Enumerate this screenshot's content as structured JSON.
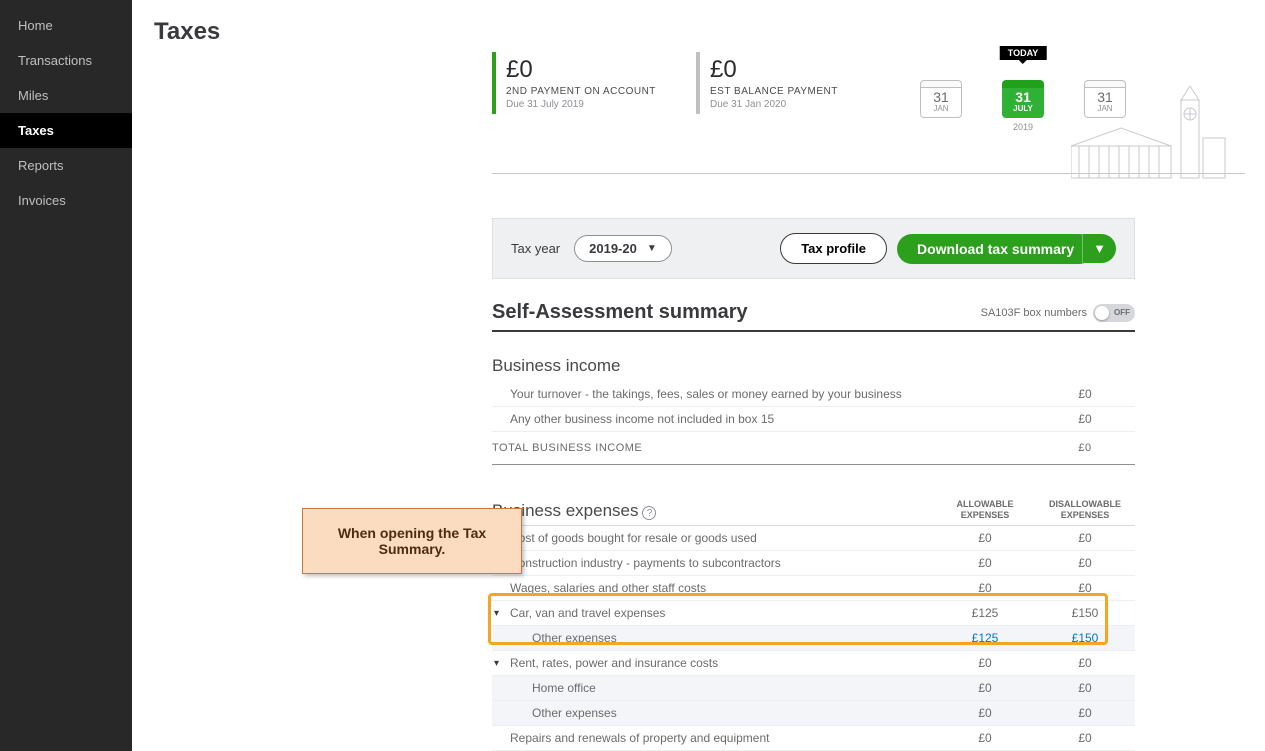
{
  "sidebar": {
    "items": [
      {
        "label": "Home"
      },
      {
        "label": "Transactions"
      },
      {
        "label": "Miles"
      },
      {
        "label": "Taxes"
      },
      {
        "label": "Reports"
      },
      {
        "label": "Invoices"
      }
    ],
    "active_index": 3
  },
  "page": {
    "title": "Taxes"
  },
  "timeline": {
    "today_label": "TODAY",
    "year_label": "2019",
    "payments": [
      {
        "amount": "£0",
        "title": "2ND PAYMENT ON ACCOUNT",
        "due": "Due 31 July 2019",
        "accent": "#2ca01c"
      },
      {
        "amount": "£0",
        "title": "EST BALANCE PAYMENT",
        "due": "Due 31 Jan 2020",
        "accent": "#c0c0c0"
      }
    ],
    "dates": [
      {
        "day": "31",
        "mon": "JAN",
        "style": "plain"
      },
      {
        "day": "31",
        "mon": "JULY",
        "style": "green"
      },
      {
        "day": "31",
        "mon": "JAN",
        "style": "plain"
      }
    ]
  },
  "controls": {
    "tax_year_label": "Tax year",
    "tax_year_value": "2019-20",
    "tax_profile_btn": "Tax profile",
    "download_btn": "Download tax summary"
  },
  "summary": {
    "title": "Self-Assessment summary",
    "box_numbers_label": "SA103F box numbers",
    "toggle_state": "OFF",
    "income": {
      "heading": "Business income",
      "rows": [
        {
          "label": "Your turnover - the takings, fees, sales or money earned by your business",
          "value": "£0"
        },
        {
          "label": "Any other business income not included in box 15",
          "value": "£0"
        }
      ],
      "total_label": "TOTAL BUSINESS INCOME",
      "total_value": "£0"
    },
    "expenses": {
      "heading": "Business expenses",
      "col1": "ALLOWABLE EXPENSES",
      "col2": "DISALLOWABLE EXPENSES",
      "rows": [
        {
          "label": "Cost of goods bought for resale or goods used",
          "allow": "£0",
          "disallow": "£0",
          "type": "plain"
        },
        {
          "label": "Construction industry - payments to subcontractors",
          "allow": "£0",
          "disallow": "£0",
          "type": "plain"
        },
        {
          "label": "Wages, salaries and other staff costs",
          "allow": "£0",
          "disallow": "£0",
          "type": "plain"
        },
        {
          "label": "Car, van and travel expenses",
          "allow": "£125",
          "disallow": "£150",
          "type": "parent"
        },
        {
          "label": "Other expenses",
          "allow": "£125",
          "disallow": "£150",
          "type": "sub_link"
        },
        {
          "label": "Rent, rates, power and insurance costs",
          "allow": "£0",
          "disallow": "£0",
          "type": "parent"
        },
        {
          "label": "Home office",
          "allow": "£0",
          "disallow": "£0",
          "type": "sub"
        },
        {
          "label": "Other expenses",
          "allow": "£0",
          "disallow": "£0",
          "type": "sub"
        },
        {
          "label": "Repairs and renewals of property and equipment",
          "allow": "£0",
          "disallow": "£0",
          "type": "plain"
        }
      ]
    }
  },
  "callout": {
    "text": "When opening the Tax Summary."
  },
  "colors": {
    "accent_green": "#2ca01c",
    "highlight": "#f4a623",
    "callout_bg": "#fbdcc0",
    "sidebar_bg": "#282828",
    "link": "#0077c5"
  }
}
